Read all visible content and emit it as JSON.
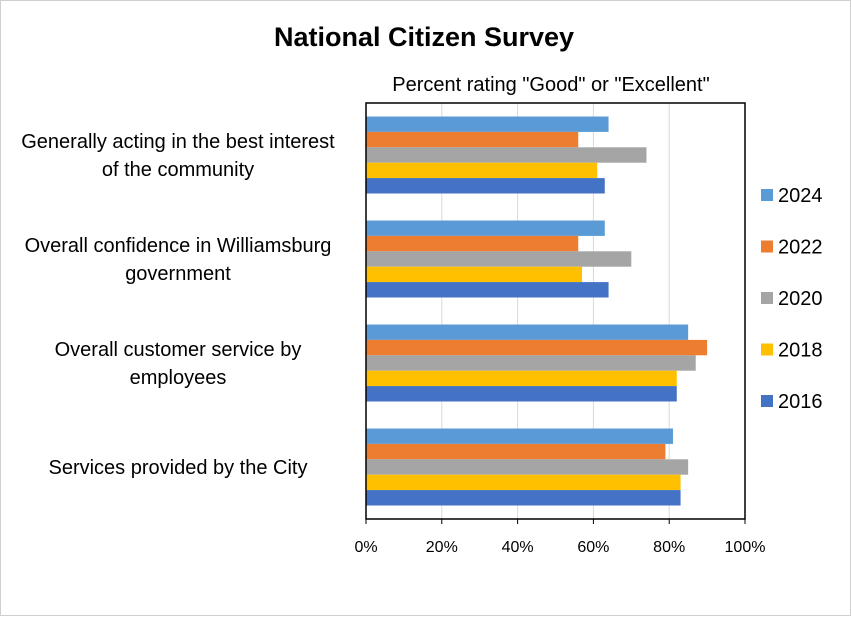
{
  "chart_data": {
    "type": "bar",
    "orientation": "horizontal",
    "title": "National Citizen Survey",
    "subtitle": "Percent rating \"Good\" or \"Excellent\"",
    "categories": [
      [
        "Generally acting in the best interest",
        "of the community"
      ],
      [
        "Overall confidence in Williamsburg",
        "government"
      ],
      [
        "Overall customer service by",
        "employees"
      ],
      [
        "Services provided by the City"
      ]
    ],
    "series": [
      {
        "name": "2024",
        "color": "#5B9BD5",
        "values": [
          64,
          63,
          85,
          81
        ]
      },
      {
        "name": "2022",
        "color": "#ED7D31",
        "values": [
          56,
          56,
          90,
          79
        ]
      },
      {
        "name": "2020",
        "color": "#A5A5A5",
        "values": [
          74,
          70,
          87,
          85
        ]
      },
      {
        "name": "2018",
        "color": "#FFC000",
        "values": [
          61,
          57,
          82,
          83
        ]
      },
      {
        "name": "2016",
        "color": "#4472C4",
        "values": [
          63,
          64,
          82,
          83
        ]
      }
    ],
    "xlim": [
      0,
      100
    ],
    "xticks": [
      "0%",
      "20%",
      "40%",
      "60%",
      "80%",
      "100%"
    ],
    "grid": true,
    "legend_position": "right"
  }
}
